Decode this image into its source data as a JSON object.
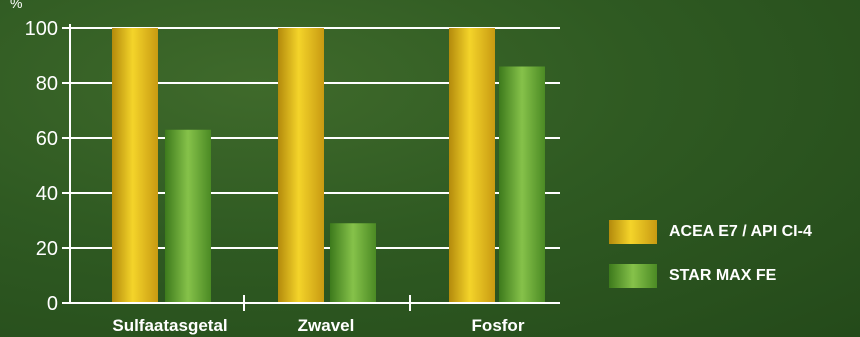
{
  "chart_data": {
    "type": "bar",
    "ylabel": "%",
    "ylim": [
      0,
      100
    ],
    "y_ticks": [
      0,
      20,
      40,
      60,
      80,
      100
    ],
    "categories": [
      "Sulfaatasgetal",
      "Zwavel",
      "Fosfor"
    ],
    "series": [
      {
        "name": "ACEA E7 / API CI-4",
        "values": [
          100,
          100,
          100
        ]
      },
      {
        "name": "STAR MAX FE",
        "values": [
          63,
          29,
          86
        ]
      }
    ],
    "grid": true,
    "legend_position": "right"
  },
  "colors": {
    "background": "#2f5a22",
    "series_1": "#e8c21e",
    "series_2": "#74b23c",
    "axis": "#ffffff",
    "text": "#ffffff"
  }
}
